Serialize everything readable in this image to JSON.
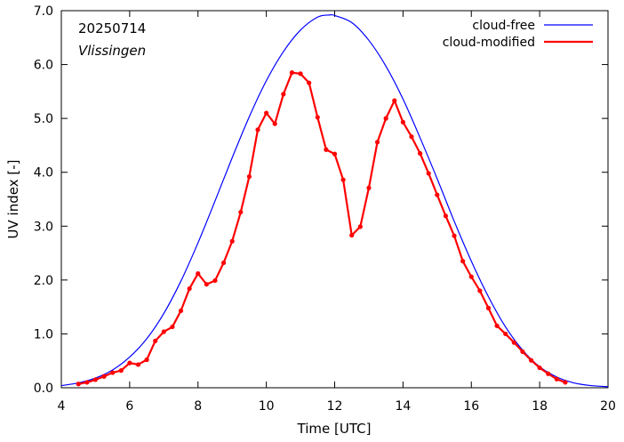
{
  "chart_data": {
    "type": "line",
    "xlabel": "Time  [UTC]",
    "ylabel": "UV index  [-]",
    "xlim": [
      4,
      20
    ],
    "ylim": [
      0.0,
      7.0
    ],
    "xticks": [
      4,
      6,
      8,
      10,
      12,
      14,
      16,
      18,
      20
    ],
    "xtick_labels": [
      "4",
      "6",
      "8",
      "10",
      "12",
      "14",
      "16",
      "18",
      "20"
    ],
    "yticks": [
      0,
      1,
      2,
      3,
      4,
      5,
      6,
      7
    ],
    "ytick_labels": [
      "0.0",
      "1.0",
      "2.0",
      "3.0",
      "4.0",
      "5.0",
      "6.0",
      "7.0"
    ],
    "annotations": {
      "date": "20250714",
      "location": "Vlissingen"
    },
    "legend_position": "top-right",
    "grid": false,
    "series": [
      {
        "name": "cloud-free",
        "color": "#0000ff",
        "markers": false,
        "peak_time": 11.85,
        "x": [
          4.0,
          4.5,
          5.0,
          5.5,
          6.0,
          6.5,
          7.0,
          7.5,
          8.0,
          8.5,
          9.0,
          9.5,
          10.0,
          10.5,
          11.0,
          11.5,
          11.85,
          12.0,
          12.5,
          13.0,
          13.5,
          14.0,
          14.5,
          15.0,
          15.5,
          16.0,
          16.5,
          17.0,
          17.5,
          18.0,
          18.5,
          19.0,
          19.5,
          20.0
        ],
        "y": [
          0.04,
          0.09,
          0.18,
          0.33,
          0.57,
          0.91,
          1.38,
          1.98,
          2.69,
          3.47,
          4.27,
          5.03,
          5.7,
          6.24,
          6.64,
          6.88,
          6.92,
          6.91,
          6.78,
          6.45,
          5.97,
          5.36,
          4.64,
          3.88,
          3.09,
          2.35,
          1.69,
          1.13,
          0.7,
          0.39,
          0.2,
          0.09,
          0.04,
          0.02
        ]
      },
      {
        "name": "cloud-modified",
        "color": "#ff0000",
        "markers": true,
        "x": [
          4.5,
          4.75,
          5.0,
          5.25,
          5.5,
          5.75,
          6.0,
          6.25,
          6.5,
          6.75,
          7.0,
          7.25,
          7.5,
          7.75,
          8.0,
          8.25,
          8.5,
          8.75,
          9.0,
          9.25,
          9.5,
          9.75,
          10.0,
          10.25,
          10.5,
          10.75,
          11.0,
          11.25,
          11.5,
          11.75,
          12.0,
          12.25,
          12.5,
          12.75,
          13.0,
          13.25,
          13.5,
          13.75,
          14.0,
          14.25,
          14.5,
          14.75,
          15.0,
          15.25,
          15.5,
          15.75,
          16.0,
          16.25,
          16.5,
          16.75,
          17.0,
          17.25,
          17.5,
          17.75,
          18.0,
          18.25,
          18.5,
          18.75
        ],
        "y": [
          0.07,
          0.1,
          0.15,
          0.21,
          0.28,
          0.32,
          0.46,
          0.43,
          0.52,
          0.87,
          1.04,
          1.13,
          1.43,
          1.84,
          2.12,
          1.92,
          1.99,
          2.32,
          2.72,
          3.26,
          3.92,
          4.79,
          5.1,
          4.9,
          5.45,
          5.85,
          5.83,
          5.66,
          5.02,
          4.42,
          4.34,
          3.86,
          2.83,
          2.99,
          3.71,
          4.56,
          5.0,
          5.33,
          4.93,
          4.66,
          4.35,
          3.98,
          3.58,
          3.19,
          2.82,
          2.35,
          2.06,
          1.8,
          1.48,
          1.15,
          1.0,
          0.84,
          0.67,
          0.51,
          0.37,
          0.26,
          0.16,
          0.1
        ]
      }
    ]
  }
}
